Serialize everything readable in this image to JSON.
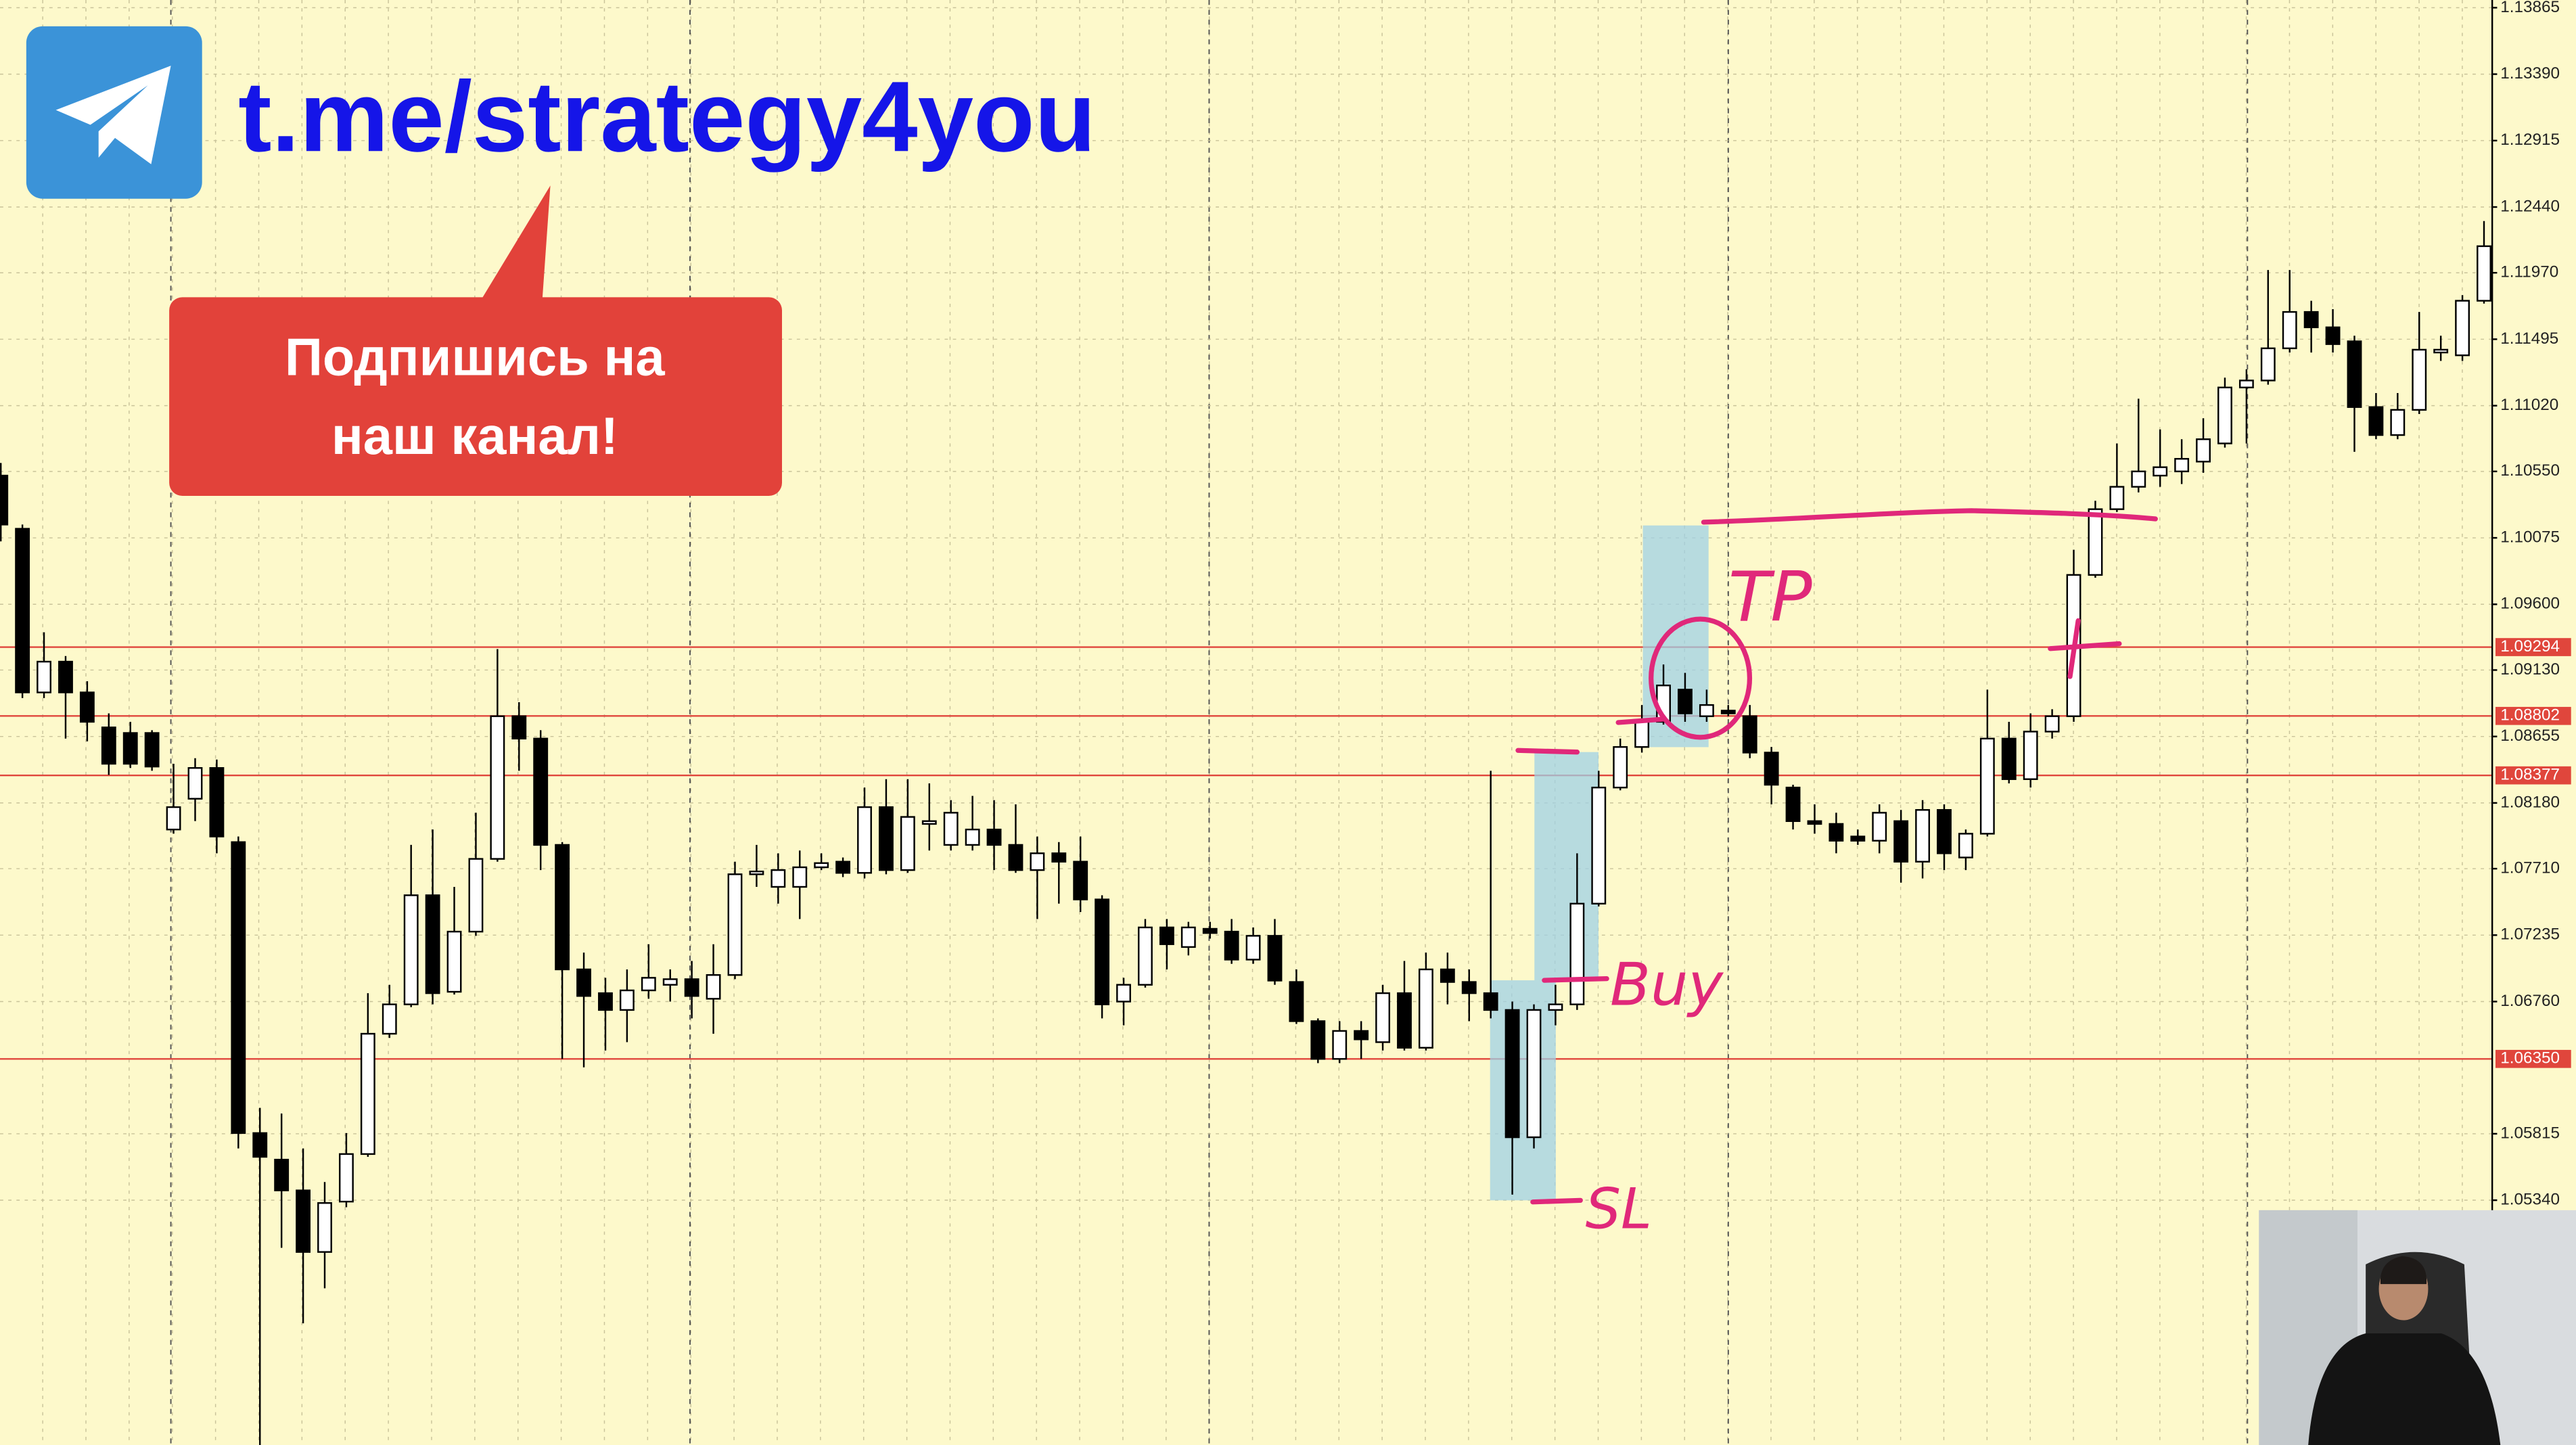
{
  "overlay": {
    "link": "t.me/strategy4you",
    "callout": [
      "Подпишись на",
      "наш канал!"
    ]
  },
  "chart_data": {
    "type": "candlestick",
    "open": [
      1.1052,
      1.1014,
      1.0897,
      1.0919,
      1.0897,
      1.0872,
      1.0868,
      1.0868,
      1.0799,
      1.0821,
      1.0843,
      1.079,
      1.0582,
      1.0563,
      1.0541,
      1.0497,
      1.0533,
      1.0567,
      1.0653,
      1.0674,
      1.0752,
      1.0683,
      1.0726,
      1.0778,
      1.088,
      1.0864,
      1.0788,
      1.0699,
      1.0682,
      1.067,
      1.0684,
      1.0688,
      1.0692,
      1.0678,
      1.0695,
      1.0767,
      1.0758,
      1.0758,
      1.0772,
      1.0776,
      1.0768,
      1.0815,
      1.077,
      1.0803,
      1.0788,
      1.0788,
      1.0799,
      1.0788,
      1.077,
      1.0782,
      1.0776,
      1.0749,
      1.0676,
      1.0688,
      1.0729,
      1.0715,
      1.0728,
      1.0726,
      1.0706,
      1.0723,
      1.069,
      1.0662,
      1.0635,
      1.0655,
      1.0647,
      1.0682,
      1.0643,
      1.0699,
      1.069,
      1.0682,
      1.067,
      1.0579,
      1.067,
      1.0674,
      1.0746,
      1.0829,
      1.0858,
      1.0876,
      1.0899,
      1.088,
      1.0884,
      1.088,
      1.0854,
      1.0829,
      1.0805,
      1.0803,
      1.0794,
      1.0791,
      1.0805,
      1.0776,
      1.0813,
      1.0779,
      1.0796,
      1.0864,
      1.0835,
      1.0869,
      1.088,
      1.0981,
      1.1028,
      1.1044,
      1.1052,
      1.1055,
      1.1062,
      1.1075,
      1.1115,
      1.112,
      1.1143,
      1.1169,
      1.1158,
      1.1148,
      1.1101,
      1.1081,
      1.1099,
      1.114,
      1.1138,
      1.1177
    ],
    "high": [
      1.1061,
      1.1017,
      1.094,
      1.0923,
      1.0905,
      1.0882,
      1.0876,
      1.087,
      1.0846,
      1.085,
      1.0849,
      1.0794,
      1.06,
      1.0596,
      1.0571,
      1.0547,
      1.0582,
      1.0682,
      1.0688,
      1.0788,
      1.0799,
      1.0758,
      1.0811,
      1.0928,
      1.089,
      1.087,
      1.079,
      1.0711,
      1.0693,
      1.0699,
      1.0717,
      1.0699,
      1.0705,
      1.0717,
      1.0776,
      1.0788,
      1.0782,
      1.0784,
      1.0782,
      1.0779,
      1.0829,
      1.0835,
      1.0835,
      1.0832,
      1.082,
      1.0823,
      1.082,
      1.0817,
      1.0794,
      1.079,
      1.0794,
      1.0752,
      1.0693,
      1.0735,
      1.0735,
      1.0733,
      1.0733,
      1.0735,
      1.0729,
      1.0735,
      1.0699,
      1.0664,
      1.0662,
      1.0662,
      1.0688,
      1.0705,
      1.0711,
      1.0711,
      1.0699,
      1.0841,
      1.0676,
      1.0674,
      1.0688,
      1.0782,
      1.0841,
      1.0864,
      1.0888,
      1.0917,
      1.0911,
      1.0899,
      1.0888,
      1.0888,
      1.0858,
      1.0831,
      1.0817,
      1.0811,
      1.0799,
      1.0817,
      1.0813,
      1.082,
      1.0817,
      1.0799,
      1.0899,
      1.0876,
      1.0882,
      1.0885,
      1.0999,
      1.1034,
      1.1075,
      1.1107,
      1.1085,
      1.1078,
      1.1093,
      1.1122,
      1.1128,
      1.1199,
      1.1199,
      1.1177,
      1.1171,
      1.1152,
      1.1111,
      1.1111,
      1.1169,
      1.1152,
      1.1181,
      1.1234
    ],
    "low": [
      1.1005,
      1.0893,
      1.0893,
      1.0864,
      1.0862,
      1.0838,
      1.0843,
      1.0841,
      1.0796,
      1.0805,
      1.0782,
      1.0571,
      1.0359,
      1.05,
      1.0446,
      1.0471,
      1.0529,
      1.0565,
      1.065,
      1.0672,
      1.0674,
      1.0681,
      1.0723,
      1.0776,
      1.0841,
      1.077,
      1.0635,
      1.0629,
      1.0641,
      1.0647,
      1.0678,
      1.0676,
      1.0664,
      1.0653,
      1.0692,
      1.0758,
      1.0746,
      1.0735,
      1.077,
      1.0765,
      1.0764,
      1.0767,
      1.0768,
      1.0784,
      1.0784,
      1.0784,
      1.077,
      1.0768,
      1.0735,
      1.0746,
      1.074,
      1.0664,
      1.0659,
      1.0686,
      1.0699,
      1.0709,
      1.0721,
      1.0703,
      1.0703,
      1.0688,
      1.066,
      1.0632,
      1.0632,
      1.0635,
      1.0641,
      1.0641,
      1.0641,
      1.0674,
      1.0662,
      1.0664,
      1.0538,
      1.0571,
      1.0659,
      1.067,
      1.0744,
      1.0827,
      1.0854,
      1.0874,
      1.0876,
      1.0876,
      1.088,
      1.085,
      1.0817,
      1.0799,
      1.0796,
      1.0782,
      1.0788,
      1.0782,
      1.0761,
      1.0764,
      1.077,
      1.077,
      1.0794,
      1.0832,
      1.0829,
      1.0864,
      1.0876,
      1.0979,
      1.1026,
      1.104,
      1.1044,
      1.1046,
      1.1054,
      1.1072,
      1.1075,
      1.1117,
      1.114,
      1.114,
      1.114,
      1.1069,
      1.1078,
      1.1078,
      1.1096,
      1.1134,
      1.1134,
      1.1175
    ],
    "close": [
      1.1017,
      1.0897,
      1.0919,
      1.0897,
      1.0876,
      1.0846,
      1.0846,
      1.0844,
      1.0815,
      1.0843,
      1.0794,
      1.0582,
      1.0565,
      1.0541,
      1.0497,
      1.0532,
      1.0567,
      1.0653,
      1.0674,
      1.0752,
      1.0682,
      1.0726,
      1.0778,
      1.088,
      1.0864,
      1.0788,
      1.0699,
      1.068,
      1.067,
      1.0684,
      1.0693,
      1.0692,
      1.068,
      1.0695,
      1.0767,
      1.0769,
      1.077,
      1.0772,
      1.0775,
      1.0768,
      1.0815,
      1.077,
      1.0808,
      1.0805,
      1.0811,
      1.0799,
      1.0788,
      1.077,
      1.0782,
      1.0776,
      1.0749,
      1.0674,
      1.0688,
      1.0729,
      1.0717,
      1.0729,
      1.0725,
      1.0706,
      1.0723,
      1.0691,
      1.0662,
      1.0635,
      1.0655,
      1.0649,
      1.0682,
      1.0643,
      1.0699,
      1.069,
      1.0682,
      1.067,
      1.0579,
      1.067,
      1.0674,
      1.0746,
      1.0829,
      1.0858,
      1.0876,
      1.0902,
      1.0882,
      1.0888,
      1.0882,
      1.0854,
      1.0831,
      1.0805,
      1.0803,
      1.0791,
      1.0791,
      1.0811,
      1.0776,
      1.0813,
      1.0782,
      1.0796,
      1.0864,
      1.0835,
      1.0869,
      1.088,
      1.0981,
      1.1028,
      1.1044,
      1.1055,
      1.1058,
      1.1064,
      1.1078,
      1.1115,
      1.112,
      1.1143,
      1.1169,
      1.1158,
      1.1146,
      1.1101,
      1.1081,
      1.1099,
      1.1142,
      1.1142,
      1.1177,
      1.1216
    ],
    "up_color": "#ffffff",
    "down_color": "#000000",
    "level_color": "#e0463c",
    "ylim": [
      1.0359,
      1.1392
    ],
    "yticks": [
      1.13865,
      {
        "value": 1.1339,
        "label": "1.13390"
      },
      1.12915,
      {
        "value": 1.1244,
        "label": "1.12440"
      },
      {
        "value": 1.1197,
        "label": "1.11970"
      },
      1.11495,
      {
        "value": 1.1102,
        "label": "1.11020"
      },
      {
        "value": 1.1055,
        "label": "1.10550"
      },
      1.10075,
      {
        "value": 1.096,
        "label": "1.09600"
      },
      {
        "value": 1.0913,
        "label": "1.09130"
      },
      1.08655,
      {
        "value": 1.0818,
        "label": "1.08180"
      },
      {
        "value": 1.0771,
        "label": "1.07710"
      },
      1.07235,
      {
        "value": 1.0676,
        "label": "1.06760"
      },
      1.05815,
      {
        "value": 1.0534,
        "label": "1.05340"
      }
    ],
    "levels": [
      1.09294,
      1.08802,
      1.08377,
      {
        "value": 1.0635,
        "label": "1.06350"
      }
    ],
    "annotations": [
      "TP",
      "Buy",
      "SL"
    ],
    "grid": true
  }
}
